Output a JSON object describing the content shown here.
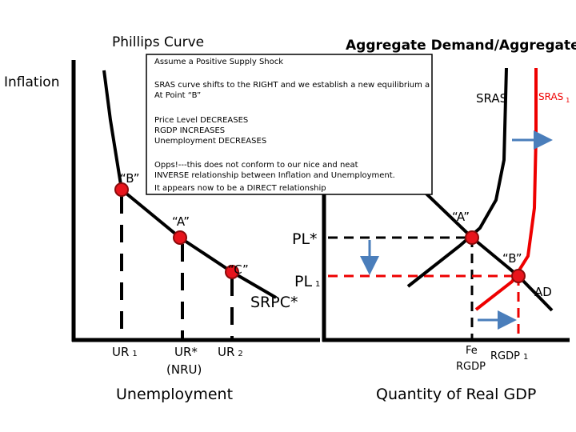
{
  "header": {
    "left_title": "Phillips Curve",
    "right_title": "Aggregate Demand/Aggregate Supply"
  },
  "note": {
    "lines": [
      "Assume a Positive Supply Shock",
      "SRAS curve shifts to the RIGHT and we establish a new equilibrium a",
      "At Point “B”",
      "Price Level DECREASES",
      "RGDP INCREASES",
      "Unemployment DECREASES",
      "Opps!---this does not conform to our nice and neat",
      "INVERSE relationship between Inflation and Unemployment.",
      "It appears now to be a DIRECT relationship"
    ]
  },
  "phillips": {
    "y_axis": "Inflation",
    "x_axis": "Unemployment",
    "curve": "SRPC*",
    "points": [
      "“B”",
      "“A”",
      "“C”"
    ],
    "ur1": {
      "text": "UR",
      "sub": "1"
    },
    "ur_star": "UR*",
    "nru": "(NRU)",
    "ur2": {
      "text": "UR",
      "sub": "2"
    }
  },
  "adas": {
    "x_axis": "Quantity of Real GDP",
    "sras": "SRAS",
    "sras1": {
      "text": "SRAS",
      "sub": "1"
    },
    "ad": "AD",
    "points": [
      "“A”",
      "“B”"
    ],
    "pl_star": "PL*",
    "pl1": {
      "text": "PL",
      "sub": "1"
    },
    "fe": "Fe",
    "fe_rgdp": "RGDP",
    "rgdp1": {
      "text": "RGDP",
      "sub": "1"
    }
  }
}
